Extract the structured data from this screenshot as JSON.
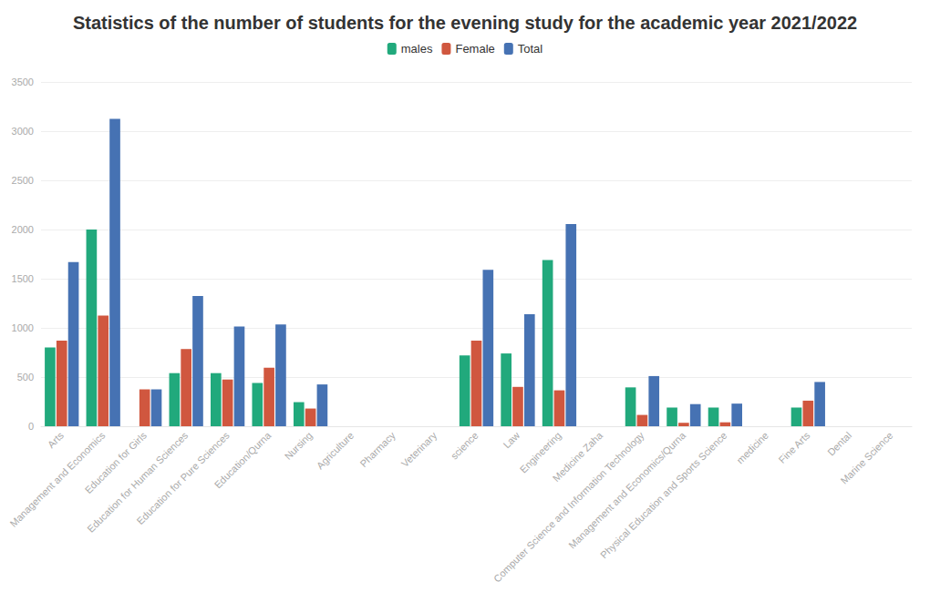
{
  "chart_data": {
    "type": "bar",
    "title": "Statistics of the number of students for the evening study for the academic year 2021/2022",
    "categories": [
      "Arts",
      "Management and Economics",
      "Education for Girls",
      "Education for Human Sciences",
      "Education for Pure Sciences",
      "Education/Qurna",
      "Nursing",
      "Agriculture",
      "Pharmacy",
      "Veterinary",
      "science",
      "Law",
      "Engineering",
      "Medicine Zaha",
      "Computer Science and Information Technology",
      "Management and Economics/Qurna",
      "Physical Education and Sports Science",
      "medicine",
      "Fine Arts",
      "Dental",
      "Marine Science"
    ],
    "series": [
      {
        "name": "males",
        "color": "#21a97c",
        "values": [
          800,
          2000,
          0,
          540,
          540,
          440,
          245,
          0,
          0,
          0,
          720,
          740,
          1690,
          0,
          395,
          190,
          190,
          0,
          190,
          0,
          0
        ]
      },
      {
        "name": "Female",
        "color": "#d0573f",
        "values": [
          870,
          1125,
          375,
          785,
          475,
          595,
          180,
          0,
          0,
          0,
          870,
          400,
          365,
          0,
          115,
          35,
          40,
          0,
          260,
          0,
          0
        ]
      },
      {
        "name": "Total",
        "color": "#4672b3",
        "values": [
          1670,
          3125,
          375,
          1325,
          1015,
          1035,
          425,
          0,
          0,
          0,
          1590,
          1140,
          2055,
          0,
          510,
          225,
          230,
          0,
          450,
          0,
          0
        ]
      }
    ],
    "ylim": [
      0,
      3500
    ],
    "yticks": [
      0,
      500,
      1000,
      1500,
      2000,
      2500,
      3000,
      3500
    ],
    "grid": true,
    "legend": "top"
  }
}
